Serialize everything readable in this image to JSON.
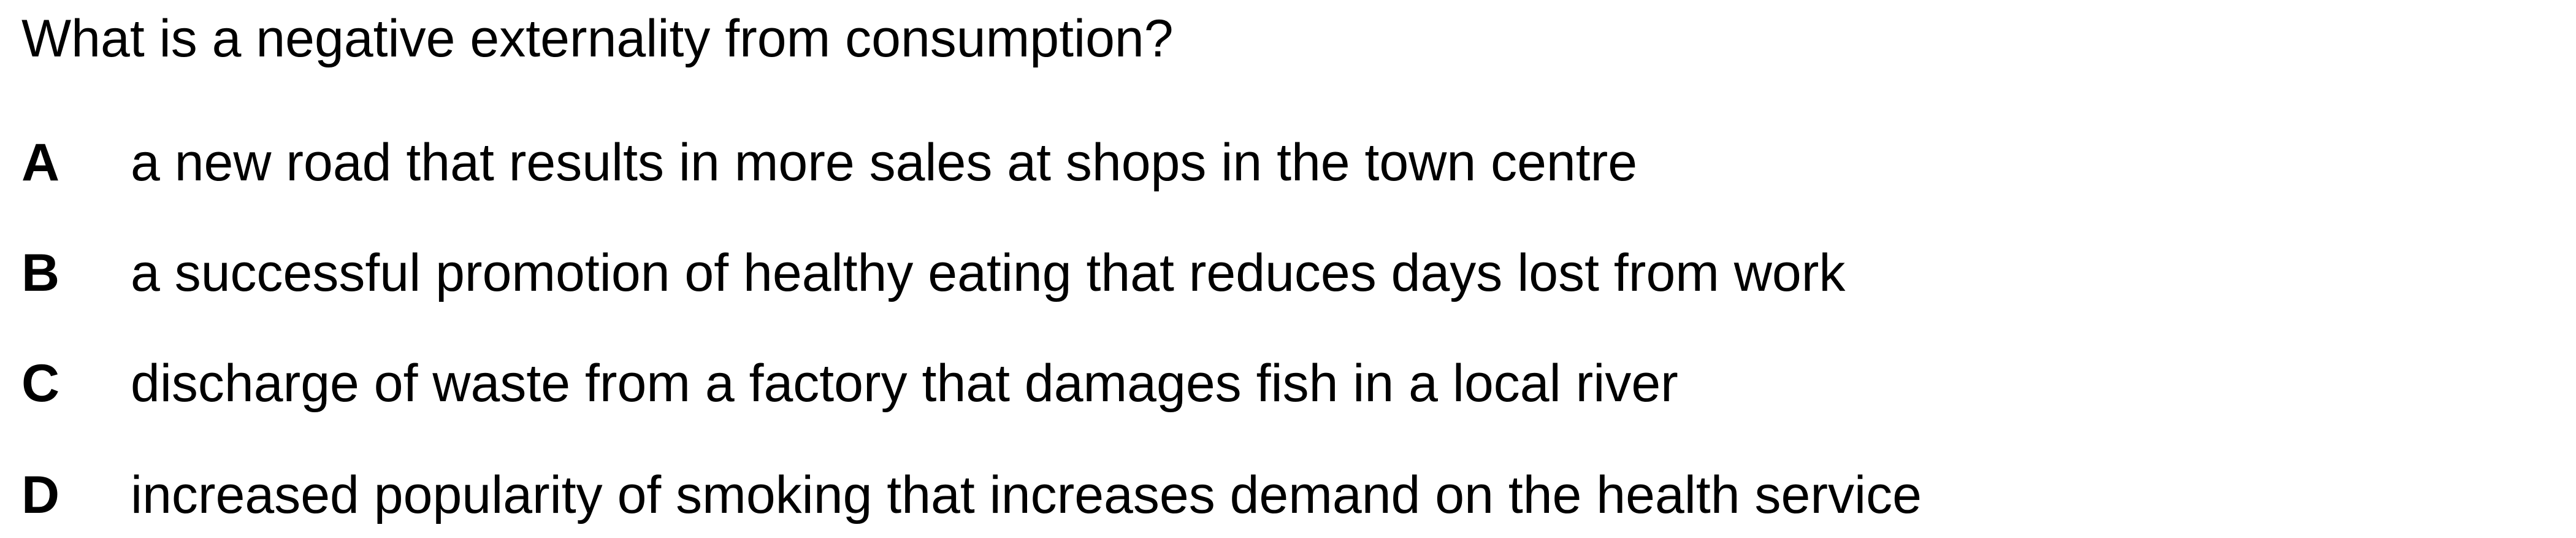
{
  "question": "What is a negative externality from consumption?",
  "options": [
    {
      "letter": "A",
      "text": "a new road that results in more sales at shops in the town centre"
    },
    {
      "letter": "B",
      "text": "a successful promotion of healthy eating that reduces days lost from work"
    },
    {
      "letter": "C",
      "text": "discharge of waste from a factory that damages fish in a local river"
    },
    {
      "letter": "D",
      "text": "increased popularity of smoking that increases demand on the health service"
    }
  ]
}
